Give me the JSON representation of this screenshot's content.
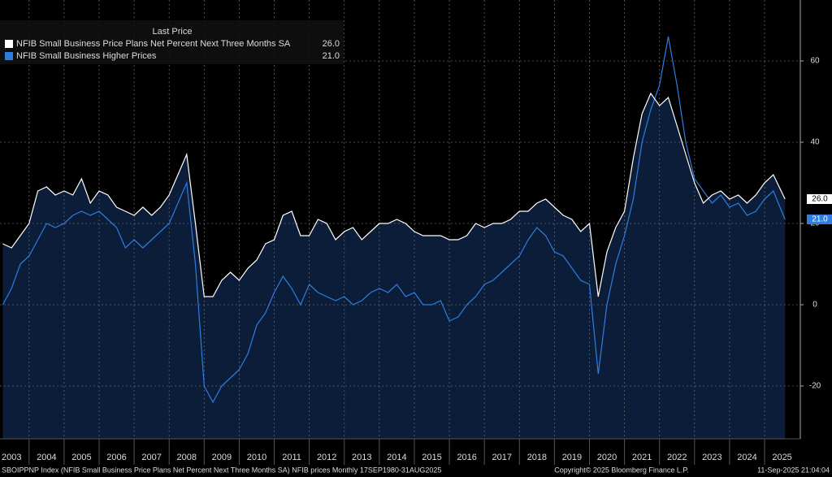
{
  "chart_data": {
    "type": "line",
    "legend_title": "Last Price",
    "footer_left": "SBOIPPNP Index (NFIB Small Business Price Plans Net Percent Next Three Months SA) NFIB prices  Monthly 17SEP1980-31AUG2025",
    "footer_center": "Copyright© 2025 Bloomberg Finance L.P.",
    "footer_right": "11-Sep-2025 21:04:04",
    "x": [
      2003.25,
      2003.5,
      2003.75,
      2004,
      2004.25,
      2004.5,
      2004.75,
      2005,
      2005.25,
      2005.5,
      2005.75,
      2006,
      2006.25,
      2006.5,
      2006.75,
      2007,
      2007.25,
      2007.5,
      2007.75,
      2008,
      2008.25,
      2008.5,
      2008.75,
      2009,
      2009.25,
      2009.5,
      2009.75,
      2010,
      2010.25,
      2010.5,
      2010.75,
      2011,
      2011.25,
      2011.5,
      2011.75,
      2012,
      2012.25,
      2012.5,
      2012.75,
      2013,
      2013.25,
      2013.5,
      2013.75,
      2014,
      2014.25,
      2014.5,
      2014.75,
      2015,
      2015.25,
      2015.5,
      2015.75,
      2016,
      2016.25,
      2016.5,
      2016.75,
      2017,
      2017.25,
      2017.5,
      2017.75,
      2018,
      2018.25,
      2018.5,
      2018.75,
      2019,
      2019.25,
      2019.5,
      2019.75,
      2020,
      2020.25,
      2020.5,
      2020.75,
      2021,
      2021.25,
      2021.5,
      2021.75,
      2022,
      2022.25,
      2022.5,
      2022.75,
      2023,
      2023.25,
      2023.5,
      2023.75,
      2024,
      2024.25,
      2024.5,
      2024.75,
      2025,
      2025.25,
      2025.583
    ],
    "series": [
      {
        "name": "NFIB Small Business Price Plans Net Percent Next Three Months SA",
        "last_label": "26.0",
        "color": "#ffffff",
        "fill": "#0b1d38",
        "values": [
          15,
          14,
          17,
          20,
          28,
          29,
          27,
          28,
          27,
          31,
          25,
          28,
          27,
          24,
          23,
          22,
          24,
          22,
          24,
          27,
          32,
          37,
          20,
          2,
          2,
          6,
          8,
          6,
          9,
          11,
          15,
          16,
          22,
          23,
          17,
          17,
          21,
          20,
          16,
          18,
          19,
          16,
          18,
          20,
          20,
          21,
          20,
          18,
          17,
          17,
          17,
          16,
          16,
          17,
          20,
          19,
          20,
          20,
          21,
          23,
          23,
          25,
          26,
          24,
          22,
          21,
          18,
          20,
          2,
          13,
          19,
          23,
          36,
          47,
          52,
          49,
          51,
          44,
          37,
          30,
          25,
          27,
          28,
          26,
          27,
          25,
          27,
          30,
          32,
          26
        ]
      },
      {
        "name": "NFIB Small Business Higher Prices",
        "last_label": "21.0",
        "color": "#2f7de1",
        "values": [
          0,
          4,
          10,
          12,
          16,
          20,
          19,
          20,
          22,
          23,
          22,
          23,
          21,
          19,
          14,
          16,
          14,
          16,
          18,
          20,
          25,
          30,
          10,
          -20,
          -24,
          -20,
          -18,
          -16,
          -12,
          -5,
          -2,
          3,
          7,
          4,
          0,
          5,
          3,
          2,
          1,
          2,
          0,
          1,
          3,
          4,
          3,
          5,
          2,
          3,
          0,
          0,
          1,
          -4,
          -3,
          0,
          2,
          5,
          6,
          8,
          10,
          12,
          16,
          19,
          17,
          13,
          12,
          9,
          6,
          5,
          -17,
          0,
          10,
          17,
          26,
          40,
          48,
          54,
          66,
          54,
          40,
          31,
          28,
          25,
          27,
          24,
          25,
          22,
          23,
          26,
          28,
          21
        ]
      }
    ],
    "xlim": [
      2003.17,
      2026.02
    ],
    "xticks": [
      {
        "value": 2003,
        "label": "2003"
      },
      {
        "value": 2004,
        "label": "2004"
      },
      {
        "value": 2005,
        "label": "2005"
      },
      {
        "value": 2006,
        "label": "2006"
      },
      {
        "value": 2007,
        "label": "2007"
      },
      {
        "value": 2008,
        "label": "2008"
      },
      {
        "value": 2009,
        "label": "2009"
      },
      {
        "value": 2010,
        "label": "2010"
      },
      {
        "value": 2011,
        "label": "2011"
      },
      {
        "value": 2012,
        "label": "2012"
      },
      {
        "value": 2013,
        "label": "2013"
      },
      {
        "value": 2014,
        "label": "2014"
      },
      {
        "value": 2015,
        "label": "2015"
      },
      {
        "value": 2016,
        "label": "2016"
      },
      {
        "value": 2017,
        "label": "2017"
      },
      {
        "value": 2018,
        "label": "2018"
      },
      {
        "value": 2019,
        "label": "2019"
      },
      {
        "value": 2020,
        "label": "2020"
      },
      {
        "value": 2021,
        "label": "2021"
      },
      {
        "value": 2022,
        "label": "2022"
      },
      {
        "value": 2023,
        "label": "2023"
      },
      {
        "value": 2024,
        "label": "2024"
      },
      {
        "value": 2025,
        "label": "2025"
      }
    ],
    "ylim": [
      -33,
      75
    ],
    "yticks": [
      -20,
      0,
      20,
      40,
      60
    ],
    "grid": true
  }
}
